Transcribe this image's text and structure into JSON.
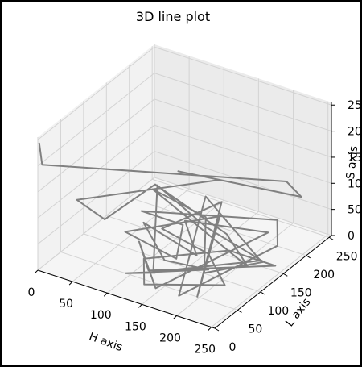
{
  "chart_data": {
    "type": "line",
    "title": "3D line plot",
    "xlabel": "H axis",
    "ylabel": "L axis",
    "zlabel": "S axis",
    "x_ticks": [
      "0",
      "50",
      "100",
      "150",
      "200",
      "250"
    ],
    "y_ticks": [
      "0",
      "50",
      "100",
      "150",
      "200",
      "250"
    ],
    "z_ticks": [
      "0",
      "50",
      "100",
      "150",
      "200",
      "250"
    ],
    "xlim": [
      0,
      255
    ],
    "ylim": [
      0,
      255
    ],
    "zlim": [
      0,
      255
    ],
    "grid": true,
    "line_color": "#808080",
    "series": [
      {
        "x": [
          2,
          3,
          200,
          215,
          110,
          150,
          30,
          70,
          90,
          180,
          250,
          60,
          130,
          200,
          240,
          170,
          80,
          140,
          255,
          110,
          190,
          240,
          200,
          90,
          130,
          160,
          60,
          150,
          210,
          120,
          80,
          180,
          230,
          140,
          100,
          190,
          250,
          120,
          80,
          150,
          200,
          100,
          150,
          60,
          130,
          180,
          100,
          130
        ],
        "y": [
          0,
          5,
          240,
          250,
          140,
          170,
          40,
          40,
          120,
          140,
          80,
          160,
          170,
          60,
          130,
          110,
          140,
          40,
          100,
          200,
          20,
          160,
          220,
          90,
          120,
          60,
          100,
          170,
          30,
          220,
          150,
          100,
          60,
          20,
          80,
          130,
          140,
          60,
          100,
          30,
          200,
          170,
          120,
          140,
          80,
          100,
          40,
          60
        ],
        "z": [
          245,
          200,
          90,
          60,
          140,
          120,
          120,
          100,
          120,
          50,
          60,
          70,
          40,
          40,
          30,
          80,
          100,
          30,
          60,
          50,
          20,
          40,
          30,
          90,
          60,
          50,
          30,
          50,
          20,
          30,
          10,
          40,
          30,
          20,
          10,
          30,
          20,
          10,
          20,
          10,
          20,
          20,
          10,
          20,
          20,
          10,
          10,
          10
        ]
      }
    ]
  }
}
